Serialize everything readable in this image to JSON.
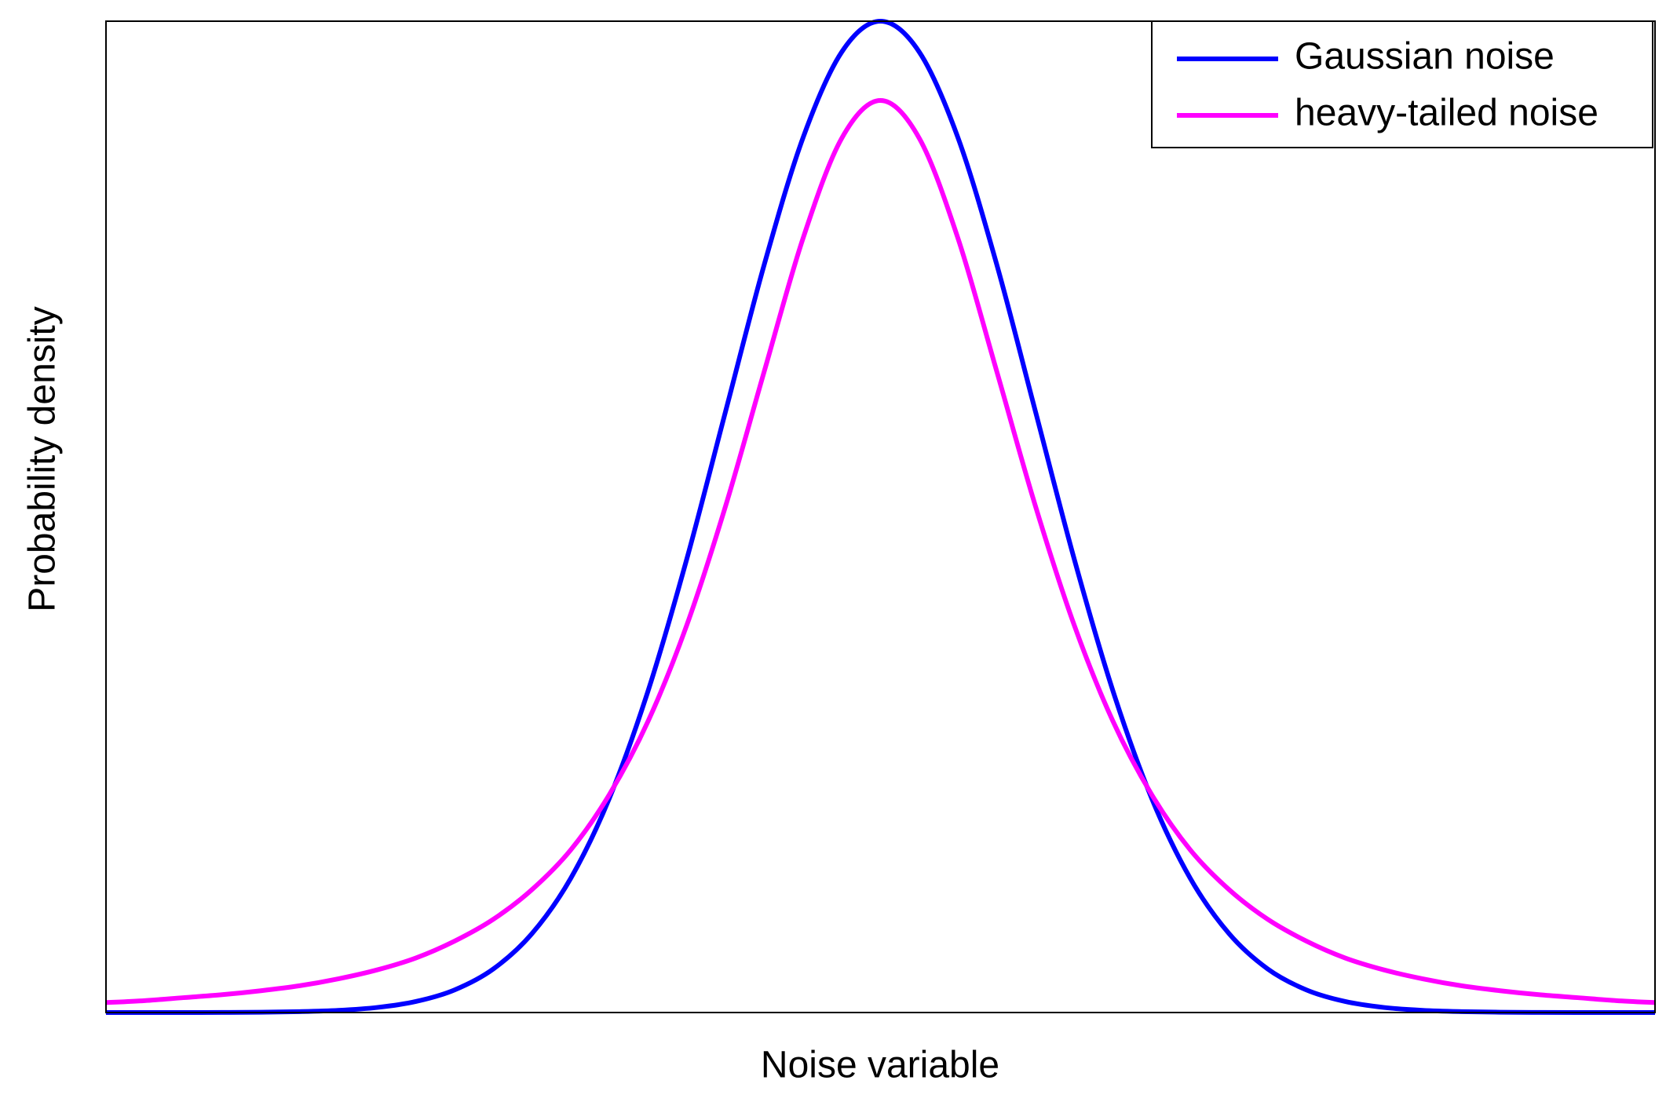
{
  "chart_data": {
    "type": "line",
    "x_label": "Noise variable",
    "y_label": "Probability density",
    "x": [
      -5,
      -4.75,
      -4.5,
      -4.25,
      -4,
      -3.75,
      -3.5,
      -3.25,
      -3,
      -2.75,
      -2.5,
      -2.25,
      -2,
      -1.75,
      -1.5,
      -1.25,
      -1,
      -0.75,
      -0.5,
      -0.25,
      0,
      0.25,
      0.5,
      0.75,
      1,
      1.25,
      1.5,
      1.75,
      2,
      2.25,
      2.5,
      2.75,
      3,
      3.25,
      3.5,
      3.75,
      4,
      4.25,
      4.5,
      4.75,
      5
    ],
    "series": [
      {
        "name": "Gaussian noise",
        "color": "#0000ff",
        "values": [
          0,
          0,
          0,
          0.0001,
          0.0003,
          0.0009,
          0.0022,
          0.0051,
          0.0111,
          0.0228,
          0.0439,
          0.0796,
          0.1353,
          0.2163,
          0.3247,
          0.4578,
          0.6065,
          0.7548,
          0.8825,
          0.969,
          1,
          0.969,
          0.8825,
          0.7548,
          0.6065,
          0.4578,
          0.3247,
          0.2163,
          0.1353,
          0.0796,
          0.0439,
          0.0228,
          0.0111,
          0.0051,
          0.0022,
          0.0009,
          0.0003,
          0.0001,
          0,
          0,
          0
        ]
      },
      {
        "name": "heavy-tailed noise",
        "color": "#ff00ff",
        "values": [
          0.01,
          0.012,
          0.015,
          0.018,
          0.022,
          0.027,
          0.034,
          0.043,
          0.055,
          0.072,
          0.094,
          0.124,
          0.164,
          0.22,
          0.294,
          0.391,
          0.511,
          0.647,
          0.781,
          0.882,
          0.92,
          0.882,
          0.781,
          0.647,
          0.511,
          0.391,
          0.294,
          0.22,
          0.164,
          0.124,
          0.094,
          0.072,
          0.055,
          0.043,
          0.034,
          0.027,
          0.022,
          0.018,
          0.015,
          0.012,
          0.01
        ]
      }
    ],
    "xlim": [
      -5,
      5
    ],
    "ylim": [
      0,
      1
    ],
    "legend": "upper right"
  }
}
